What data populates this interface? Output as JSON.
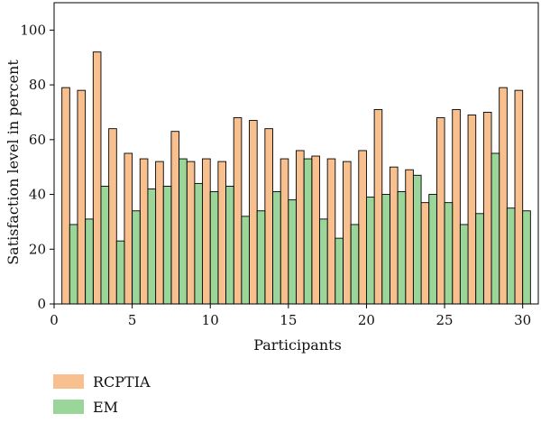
{
  "chart_data": {
    "type": "bar",
    "xlabel": "Participants",
    "ylabel": "Satisfaction level in percent",
    "xlim": [
      0,
      31
    ],
    "ylim": [
      0,
      110
    ],
    "x_ticks": [
      0,
      5,
      10,
      15,
      20,
      25,
      30
    ],
    "y_ticks": [
      0,
      20,
      40,
      60,
      80,
      100
    ],
    "grid": false,
    "legend_position": "bottom-left",
    "categories": [
      1,
      2,
      3,
      4,
      5,
      6,
      7,
      8,
      9,
      10,
      11,
      12,
      13,
      14,
      15,
      16,
      17,
      18,
      19,
      20,
      21,
      22,
      23,
      24,
      25,
      26,
      27,
      28,
      29,
      30
    ],
    "series": [
      {
        "name": "RCPTIA",
        "color": "#f9c08f",
        "values": [
          79,
          78,
          92,
          64,
          55,
          53,
          52,
          63,
          52,
          53,
          52,
          68,
          67,
          64,
          53,
          56,
          54,
          53,
          52,
          56,
          71,
          50,
          49,
          37,
          68,
          71,
          69,
          70,
          79,
          78
        ]
      },
      {
        "name": "EM",
        "color": "#9ad59a",
        "values": [
          29,
          31,
          43,
          23,
          34,
          42,
          43,
          53,
          44,
          41,
          43,
          32,
          34,
          41,
          38,
          53,
          31,
          24,
          29,
          39,
          40,
          41,
          47,
          40,
          37,
          29,
          33,
          55,
          35,
          34
        ]
      }
    ]
  }
}
